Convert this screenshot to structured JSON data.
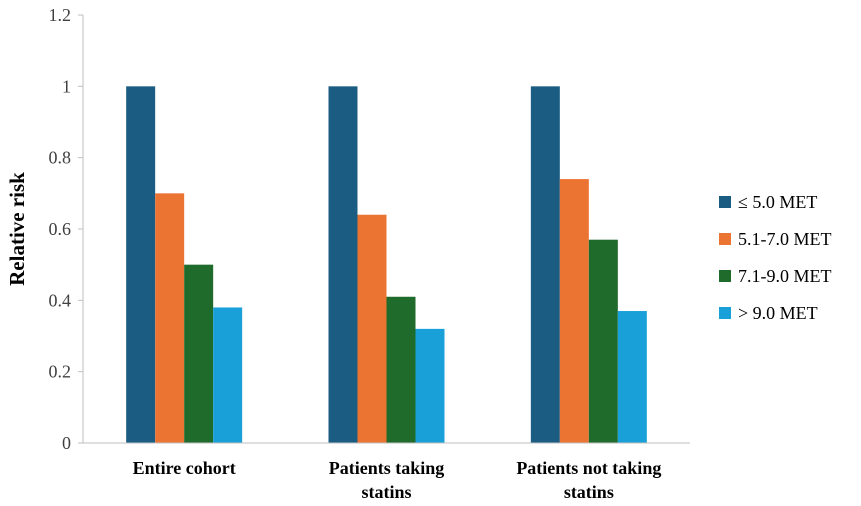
{
  "chart_data": {
    "type": "bar",
    "categories": [
      [
        "Entire cohort"
      ],
      [
        "Patients taking",
        "statins"
      ],
      [
        "Patients not taking",
        "statins"
      ]
    ],
    "series": [
      {
        "name": "≤ 5.0 MET",
        "color": "#1b5c82",
        "values": [
          1.0,
          1.0,
          1.0
        ]
      },
      {
        "name": "5.1-7.0 MET",
        "color": "#ec7433",
        "values": [
          0.7,
          0.64,
          0.74
        ]
      },
      {
        "name": "7.1-9.0 MET",
        "color": "#1f6b2c",
        "values": [
          0.5,
          0.41,
          0.57
        ]
      },
      {
        "name": "> 9.0 MET",
        "color": "#1aa0d8",
        "values": [
          0.38,
          0.32,
          0.37
        ]
      }
    ],
    "ylabel": "Relative risk",
    "xlabel": "",
    "ylim": [
      0,
      1.2
    ],
    "yticks": [
      "0",
      "0.2",
      "0.4",
      "0.6",
      "0.8",
      "1",
      "1.2"
    ],
    "grid": false,
    "legend_position": "right"
  }
}
